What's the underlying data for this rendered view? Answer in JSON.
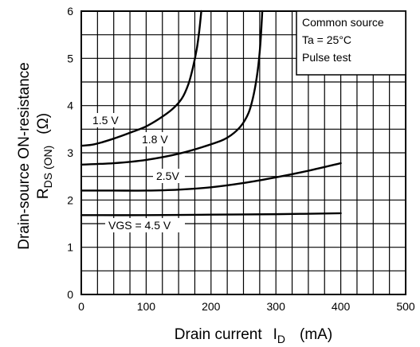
{
  "chart_data": {
    "type": "line",
    "xlabel": "Drain current",
    "xlabel_symbol": "I",
    "xlabel_symbol_sub": "D",
    "xlabel_unit": "(mA)",
    "ylabel_line1": "Drain-source ON-resistance",
    "ylabel_line2_symbol": "R",
    "ylabel_line2_sub": "DS (ON)",
    "ylabel_line2_unit": "(Ω)",
    "xlim": [
      0,
      500
    ],
    "ylim": [
      0,
      6
    ],
    "x_ticks": [
      "0",
      "100",
      "200",
      "300",
      "400",
      "500"
    ],
    "y_ticks": [
      "0",
      "1",
      "2",
      "3",
      "4",
      "5",
      "6"
    ],
    "x_minor_step": 25,
    "y_minor_step": 0.5,
    "grid": true,
    "legend_box": [
      "Common source",
      "Ta = 25°C",
      "Pulse test"
    ],
    "series": [
      {
        "name": "1.5 V",
        "points": [
          [
            0,
            3.15
          ],
          [
            20,
            3.18
          ],
          [
            50,
            3.3
          ],
          [
            80,
            3.45
          ],
          [
            100,
            3.56
          ],
          [
            120,
            3.72
          ],
          [
            140,
            3.92
          ],
          [
            155,
            4.15
          ],
          [
            165,
            4.45
          ],
          [
            172,
            4.8
          ],
          [
            178,
            5.2
          ],
          [
            182,
            5.6
          ],
          [
            185,
            6.0
          ]
        ]
      },
      {
        "name": "1.8 V",
        "points": [
          [
            0,
            2.75
          ],
          [
            50,
            2.78
          ],
          [
            100,
            2.85
          ],
          [
            150,
            2.98
          ],
          [
            200,
            3.18
          ],
          [
            225,
            3.32
          ],
          [
            245,
            3.55
          ],
          [
            258,
            3.85
          ],
          [
            266,
            4.25
          ],
          [
            272,
            4.75
          ],
          [
            276,
            5.3
          ],
          [
            279,
            6.0
          ]
        ]
      },
      {
        "name": "2.5V",
        "points": [
          [
            0,
            2.2
          ],
          [
            50,
            2.2
          ],
          [
            100,
            2.2
          ],
          [
            150,
            2.22
          ],
          [
            200,
            2.27
          ],
          [
            250,
            2.36
          ],
          [
            300,
            2.48
          ],
          [
            350,
            2.62
          ],
          [
            400,
            2.78
          ]
        ]
      },
      {
        "name": "VGS = 4.5 V",
        "points": [
          [
            0,
            1.68
          ],
          [
            100,
            1.68
          ],
          [
            200,
            1.69
          ],
          [
            300,
            1.7
          ],
          [
            400,
            1.72
          ]
        ]
      }
    ]
  }
}
